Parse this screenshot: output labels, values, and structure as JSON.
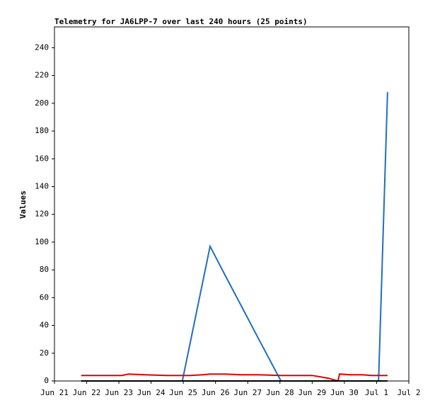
{
  "chart_data": {
    "type": "line",
    "title": "Telemetry for JA6LPP-7 over last 240 hours (25 points)",
    "ylabel": "Values",
    "x": [
      0.83,
      1.5,
      2.1,
      2.3,
      2.8,
      3.5,
      3.97,
      4.2,
      4.6,
      4.83,
      5.3,
      5.8,
      6.3,
      7.03,
      7.5,
      8.0,
      8.5,
      8.8,
      8.85,
      9.2,
      9.55,
      9.85,
      10.0,
      10.06,
      10.34
    ],
    "series": [
      {
        "color": "#1f6fbf",
        "values": [
          0,
          0,
          0,
          0,
          0,
          0,
          0,
          26,
          71,
          97,
          76,
          54,
          32,
          0,
          0,
          0,
          0,
          0,
          0,
          0,
          0,
          0,
          0,
          0,
          208
        ]
      },
      {
        "color": "#e00000",
        "values": [
          4,
          4,
          4,
          5,
          4.5,
          4,
          4,
          4,
          4.5,
          5,
          5,
          4.5,
          4.5,
          4,
          4,
          4,
          2,
          0,
          5,
          4.5,
          4.5,
          4,
          4,
          4,
          4
        ]
      },
      {
        "color": "#000000",
        "values": [
          0,
          0,
          0,
          0,
          0,
          0,
          0,
          0,
          0,
          0,
          0,
          0,
          0,
          0,
          0,
          0,
          0,
          0,
          0,
          0,
          0,
          0,
          0,
          0,
          0
        ]
      }
    ],
    "xlim": [
      0,
      11
    ],
    "xticks": [
      {
        "value": 0,
        "label": "Jun 21"
      },
      {
        "value": 1,
        "label": "Jun 22"
      },
      {
        "value": 2,
        "label": "Jun 23"
      },
      {
        "value": 3,
        "label": "Jun 24"
      },
      {
        "value": 4,
        "label": "Jun 25"
      },
      {
        "value": 5,
        "label": "Jun 26"
      },
      {
        "value": 6,
        "label": "Jun 27"
      },
      {
        "value": 7,
        "label": "Jun 28"
      },
      {
        "value": 8,
        "label": "Jun 29"
      },
      {
        "value": 9,
        "label": "Jun 30"
      },
      {
        "value": 10,
        "label": "Jul 1"
      },
      {
        "value": 11,
        "label": "Jul 2"
      }
    ],
    "ylim": [
      0,
      255
    ],
    "yticks": [
      0,
      20,
      40,
      60,
      80,
      100,
      120,
      140,
      160,
      180,
      200,
      220,
      240
    ]
  }
}
